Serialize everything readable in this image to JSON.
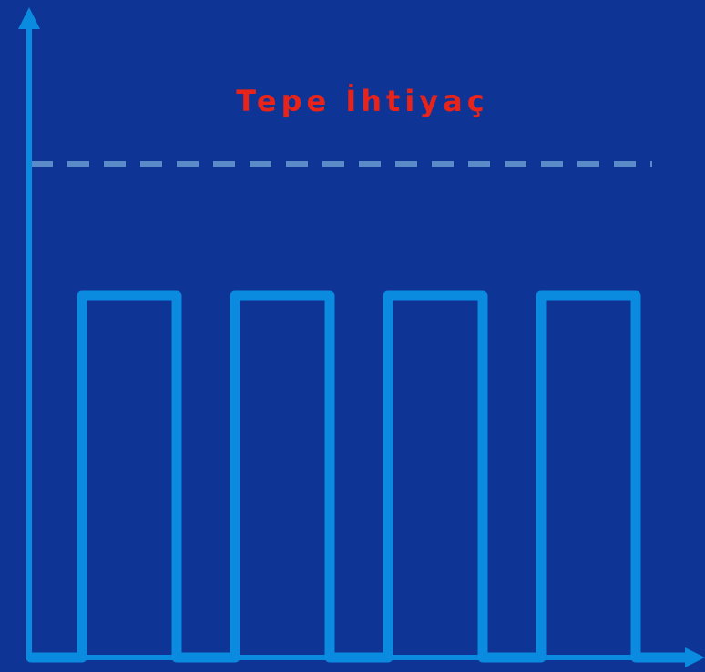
{
  "colors": {
    "background": "#0e3496",
    "line": "#0a8be0",
    "threshold": "#5a8ac8",
    "label": "#e8241a"
  },
  "labels": {
    "peak_demand": "Tepe İhtiyaç"
  },
  "chart_data": {
    "type": "line",
    "title": "",
    "xlabel": "",
    "ylabel": "",
    "series_shape": "square-wave",
    "pulse_count": 4,
    "pulse_level_ratio_to_peak": 0.74,
    "threshold_style": "dashed"
  }
}
